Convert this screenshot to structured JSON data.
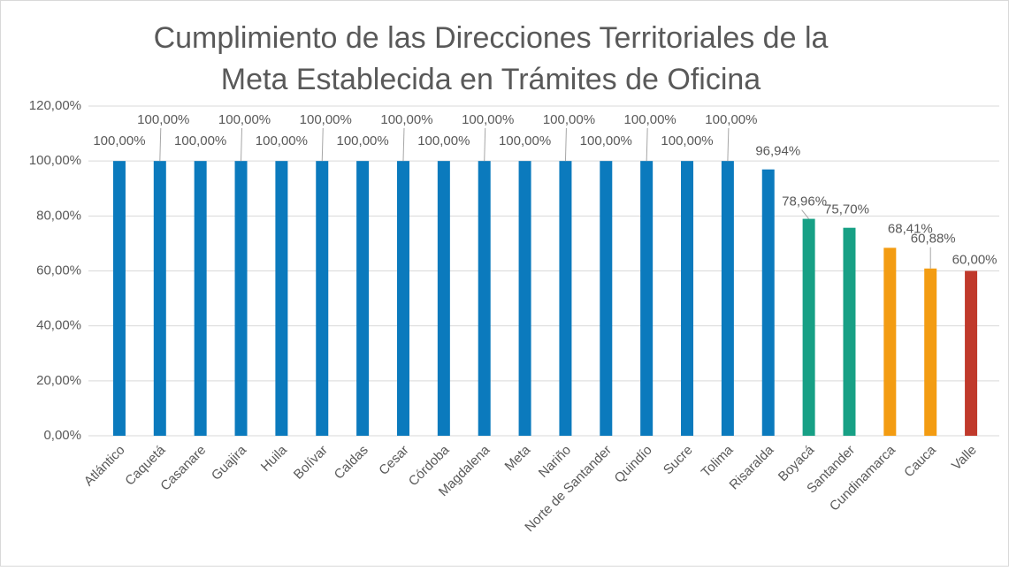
{
  "chart_data": {
    "type": "bar",
    "title": [
      "Cumplimiento de las Direcciones Territoriales de la",
      "Meta Establecida en Trámites de Oficina"
    ],
    "categories": [
      "Atlántico",
      "Caquetá",
      "Casanare",
      "Guajira",
      "Huila",
      "Bolívar",
      "Caldas",
      "Cesar",
      "Córdoba",
      "Magdalena",
      "Meta",
      "Nariño",
      "Norte de Santander",
      "Quindío",
      "Sucre",
      "Tolima",
      "Risaralda",
      "Boyacá",
      "Santander",
      "Cundinamarca",
      "Cauca",
      "Valle"
    ],
    "values": [
      100,
      100,
      100,
      100,
      100,
      100,
      100,
      100,
      100,
      100,
      100,
      100,
      100,
      100,
      100,
      100,
      96.94,
      78.96,
      75.7,
      68.41,
      60.88,
      60.0
    ],
    "value_labels": [
      "100,00%",
      "100,00%",
      "100,00%",
      "100,00%",
      "100,00%",
      "100,00%",
      "100,00%",
      "100,00%",
      "100,00%",
      "100,00%",
      "100,00%",
      "100,00%",
      "100,00%",
      "100,00%",
      "100,00%",
      "100,00%",
      "96,94%",
      "78,96%",
      "75,70%",
      "68,41%",
      "60,88%",
      "60,00%"
    ],
    "colors": [
      "#0b7abd",
      "#0b7abd",
      "#0b7abd",
      "#0b7abd",
      "#0b7abd",
      "#0b7abd",
      "#0b7abd",
      "#0b7abd",
      "#0b7abd",
      "#0b7abd",
      "#0b7abd",
      "#0b7abd",
      "#0b7abd",
      "#0b7abd",
      "#0b7abd",
      "#0b7abd",
      "#0b7abd",
      "#17a085",
      "#17a085",
      "#f39c12",
      "#f39c12",
      "#c0392b"
    ],
    "ylim": [
      0,
      120
    ],
    "yticks": [
      {
        "value": 0,
        "label": "0,00%"
      },
      {
        "value": 20,
        "label": "20,00%"
      },
      {
        "value": 40,
        "label": "40,00%"
      },
      {
        "value": 60,
        "label": "60,00%"
      },
      {
        "value": 80,
        "label": "80,00%"
      },
      {
        "value": 100,
        "label": "100,00%"
      },
      {
        "value": 120,
        "label": "120,00%"
      }
    ],
    "grid": true
  }
}
